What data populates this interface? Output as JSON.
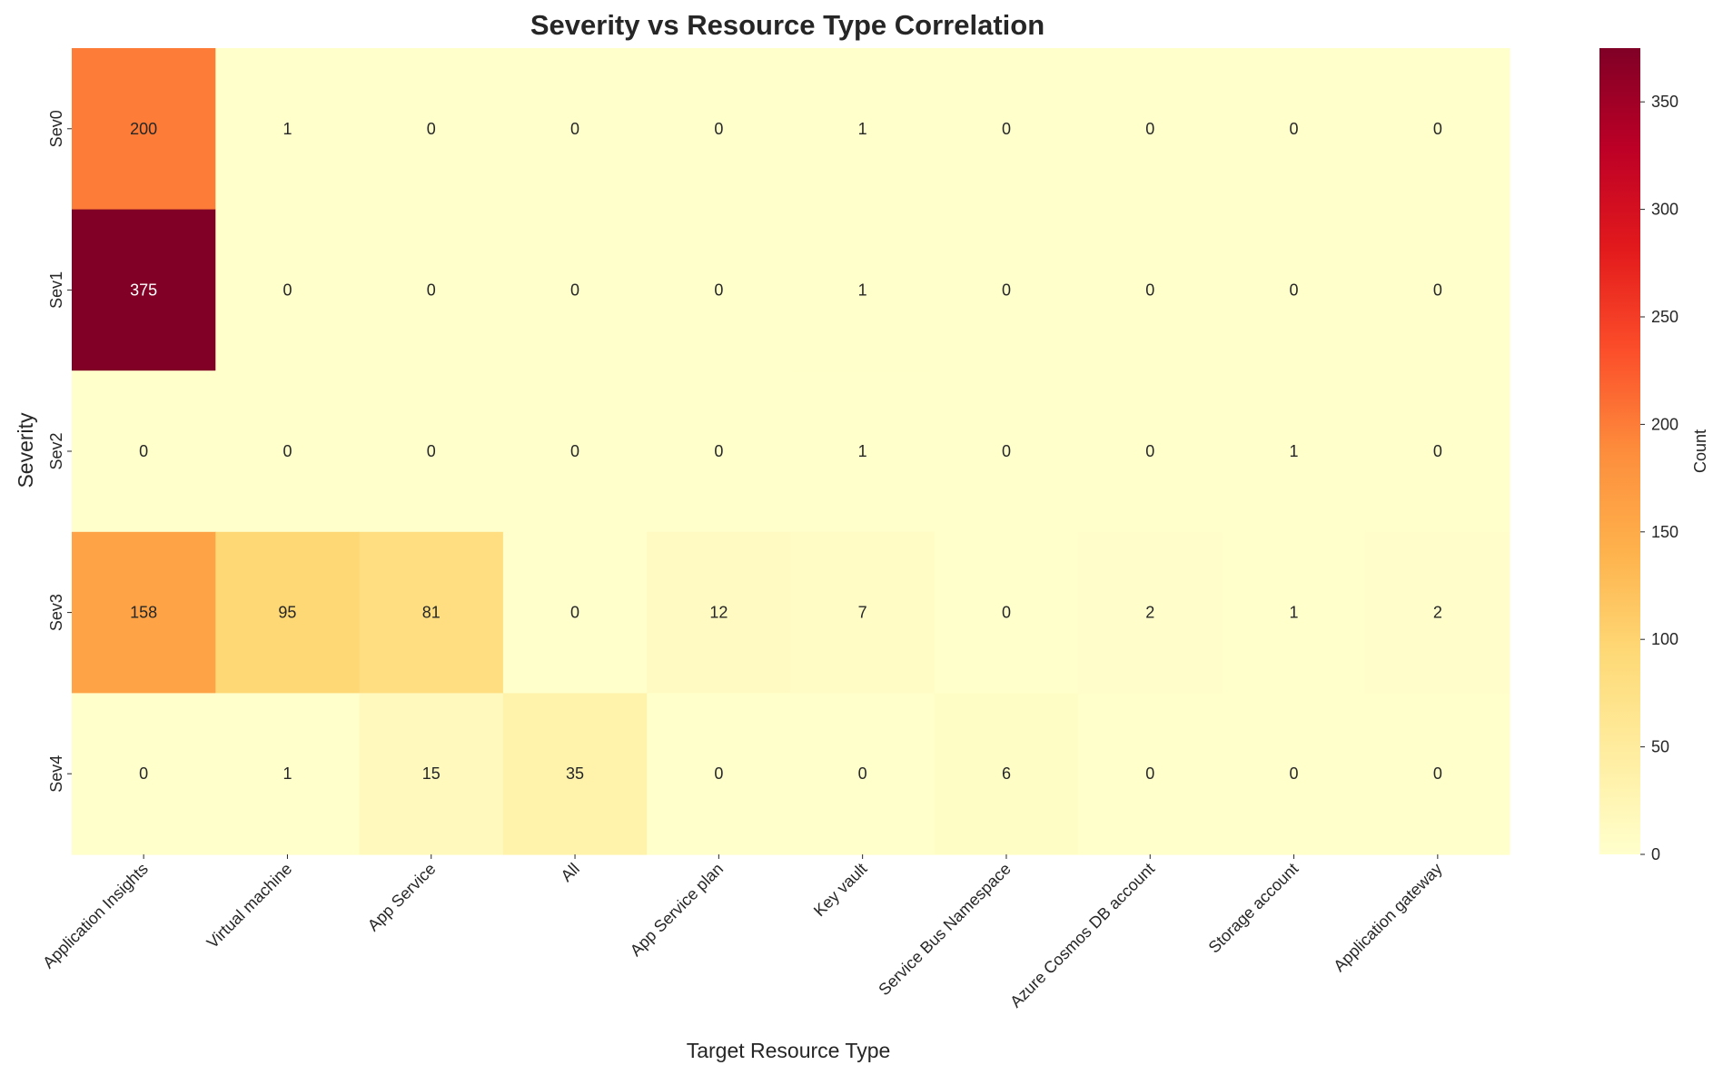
{
  "chart_data": {
    "type": "heatmap",
    "title": "Severity vs Resource Type Correlation",
    "xlabel": "Target Resource Type",
    "ylabel": "Severity",
    "x_categories": [
      "Application Insights",
      "Virtual machine",
      "App Service",
      "All",
      "App Service plan",
      "Key vault",
      "Service Bus Namespace",
      "Azure Cosmos DB account",
      "Storage account",
      "Application gateway"
    ],
    "y_categories": [
      "Sev0",
      "Sev1",
      "Sev2",
      "Sev3",
      "Sev4"
    ],
    "values": [
      [
        200,
        1,
        0,
        0,
        0,
        1,
        0,
        0,
        0,
        0
      ],
      [
        375,
        0,
        0,
        0,
        0,
        1,
        0,
        0,
        0,
        0
      ],
      [
        0,
        0,
        0,
        0,
        0,
        1,
        0,
        0,
        1,
        0
      ],
      [
        158,
        95,
        81,
        0,
        12,
        7,
        0,
        2,
        1,
        2
      ],
      [
        0,
        1,
        15,
        35,
        0,
        0,
        6,
        0,
        0,
        0
      ]
    ],
    "colorbar": {
      "label": "Count",
      "range": [
        0,
        375
      ],
      "ticks": [
        0,
        50,
        100,
        150,
        200,
        250,
        300,
        350
      ],
      "colormap": "YlOrRd",
      "colors": [
        "#ffffcc",
        "#ffeda0",
        "#fed976",
        "#feb24c",
        "#fd8d3c",
        "#fc4e2a",
        "#e31a1c",
        "#bd0026",
        "#800026"
      ]
    }
  }
}
